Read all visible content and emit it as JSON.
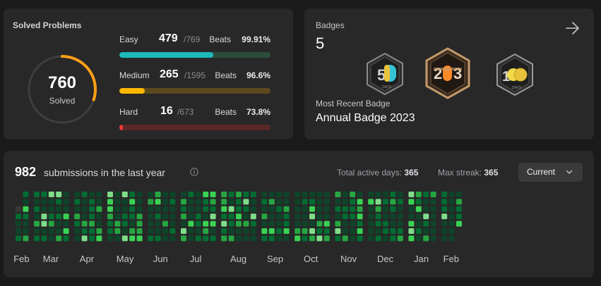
{
  "solved": {
    "title": "Solved Problems",
    "count": "760",
    "label": "Solved",
    "ring_fraction": 0.3,
    "ring_color": "#ffa116",
    "difficulties": [
      {
        "name": "Easy",
        "solved": "479",
        "total": "/769",
        "beats_label": "Beats",
        "beats": "99.91%",
        "fraction": 0.623,
        "color": "#1cbaba",
        "track": "#2a4c3a"
      },
      {
        "name": "Medium",
        "solved": "265",
        "total": "/1595",
        "beats_label": "Beats",
        "beats": "96.6%",
        "fraction": 0.166,
        "color": "#ffb700",
        "track": "#5c4a1e"
      },
      {
        "name": "Hard",
        "solved": "16",
        "total": "/673",
        "beats_label": "Beats",
        "beats": "73.8%",
        "fraction": 0.024,
        "color": "#f63737",
        "track": "#5a2727"
      }
    ]
  },
  "badges": {
    "label": "Badges",
    "count": "5",
    "items": [
      {
        "name": "50 Days Badge",
        "icon": "badge-50-days-icon"
      },
      {
        "name": "Annual Badge 2023",
        "icon": "badge-2023-icon"
      },
      {
        "name": "100 Days Badge",
        "icon": "badge-100-days-icon"
      }
    ],
    "recent_label": "Most Recent Badge",
    "recent_name": "Annual Badge 2023"
  },
  "submissions": {
    "count": "982",
    "text": "submissions in the last year",
    "active_days_label": "Total active days:",
    "active_days": "365",
    "max_streak_label": "Max streak:",
    "max_streak": "365",
    "range": "Current",
    "months": [
      "Feb",
      "Mar",
      "Apr",
      "May",
      "Jun",
      "Jul",
      "Aug",
      "Sep",
      "Oct",
      "Nov",
      "Dec",
      "Jan",
      "Feb"
    ],
    "colors": [
      "#393939",
      "#0e4429",
      "#006d32",
      "#26a641",
      "#39d353",
      "#7fdd8a"
    ]
  }
}
